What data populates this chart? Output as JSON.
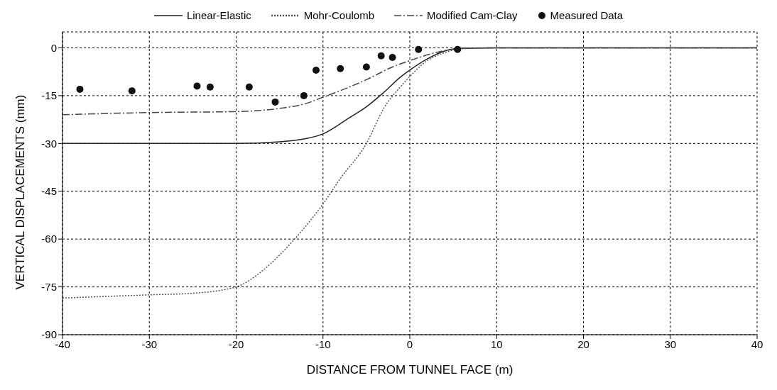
{
  "chart_data": {
    "type": "line",
    "xlabel": "DISTANCE FROM TUNNEL FACE (m)",
    "ylabel": "VERTICAL DISPLACEMENTS (mm)",
    "xlim": [
      -40,
      40
    ],
    "xticks": [
      -40,
      -30,
      -20,
      -10,
      0,
      10,
      20,
      30,
      40
    ],
    "ylim": [
      -90,
      5
    ],
    "yticks": [
      -90,
      -75,
      -60,
      -45,
      -30,
      -15,
      0
    ],
    "grid": true,
    "legend": "top",
    "marker": "none",
    "series": [
      {
        "name": "Linear-Elastic",
        "color": "#222222",
        "line_style": "solid",
        "x": [
          -40,
          -30,
          -20,
          -15,
          -12,
          -10,
          -7,
          -5,
          -3,
          -1,
          0,
          2,
          4,
          6,
          10,
          20,
          30,
          40
        ],
        "values": [
          -30,
          -30,
          -30,
          -29.5,
          -28.5,
          -27,
          -22,
          -18.5,
          -14,
          -9,
          -7,
          -3.5,
          -1,
          -0.2,
          0,
          0,
          0,
          0
        ]
      },
      {
        "name": "Mohr-Coulomb",
        "color": "#555555",
        "line_style": "dotted",
        "x": [
          -40,
          -30,
          -25,
          -20,
          -17,
          -15,
          -12,
          -10,
          -8,
          -5,
          -3,
          -1,
          0,
          2,
          4,
          6,
          10,
          20,
          30,
          40
        ],
        "values": [
          -78.5,
          -77.5,
          -77,
          -75,
          -70,
          -65,
          -56,
          -49,
          -41,
          -30,
          -19,
          -12,
          -9,
          -4,
          -1.5,
          -0.3,
          0,
          0,
          0,
          0
        ]
      },
      {
        "name": "Modified Cam-Clay",
        "color": "#444444",
        "line_style": "dashed",
        "x": [
          -40,
          -30,
          -20,
          -15,
          -12,
          -10,
          -5,
          -2,
          0,
          3,
          6,
          10,
          20,
          30,
          40
        ],
        "values": [
          -21,
          -20.3,
          -20,
          -19,
          -17.5,
          -15.5,
          -10,
          -6,
          -4,
          -1.5,
          -0.1,
          0,
          0,
          0,
          0
        ]
      },
      {
        "name": "Measured Data",
        "type": "scatter",
        "marker": "circle",
        "color": "#111111",
        "x": [
          -38,
          -32,
          -24.5,
          -23,
          -18.5,
          -15.5,
          -12.2,
          -10.8,
          -8,
          -5,
          -3.3,
          -2,
          1,
          5.5
        ],
        "values": [
          -13,
          -13.5,
          -12,
          -12.3,
          -12.3,
          -17,
          -15,
          -7,
          -6.5,
          -6,
          -2.5,
          -3,
          -0.5,
          -0.5
        ]
      }
    ]
  }
}
